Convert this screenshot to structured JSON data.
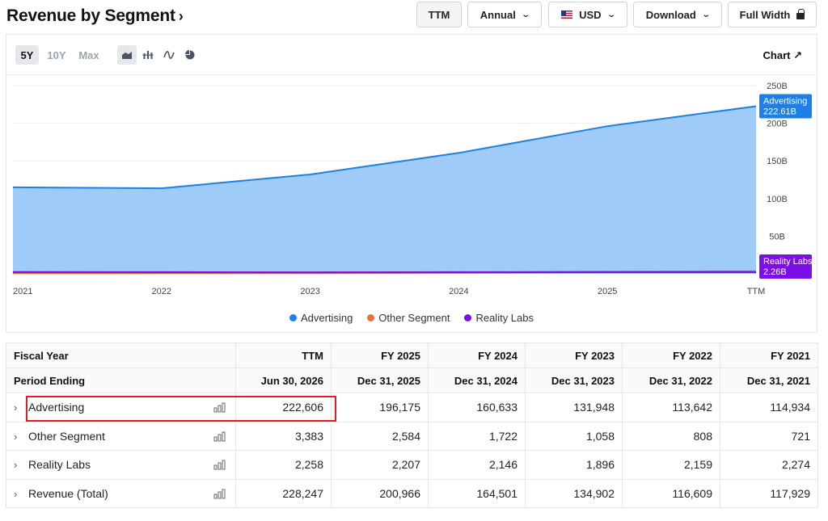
{
  "header": {
    "title": "Revenue by Segment",
    "buttons": {
      "ttm": "TTM",
      "annual": "Annual",
      "currency": "USD",
      "download": "Download",
      "full_width": "Full Width"
    }
  },
  "toolbar": {
    "ranges": [
      "5Y",
      "10Y",
      "Max"
    ],
    "active_range": "5Y",
    "chart_link": "Chart ↗",
    "chart_types": [
      "area-chart-icon",
      "bar-chart-icon",
      "line-chart-icon",
      "pie-chart-icon"
    ]
  },
  "chart_data": {
    "type": "area",
    "categories": [
      "2021",
      "2022",
      "2023",
      "2024",
      "2025",
      "TTM"
    ],
    "y_ticks": [
      "250B",
      "200B",
      "150B",
      "100B",
      "50B"
    ],
    "ylim": [
      0,
      250
    ],
    "grid": true,
    "legend_position": "bottom",
    "series": [
      {
        "name": "Advertising",
        "color": "#1d7fe8",
        "fill": "#9fcbf9",
        "values": [
          114.934,
          113.642,
          131.948,
          160.633,
          196.175,
          222.606
        ]
      },
      {
        "name": "Other Segment",
        "color": "#e8733a",
        "values": [
          0.721,
          0.808,
          1.058,
          1.722,
          2.584,
          3.383
        ]
      },
      {
        "name": "Reality Labs",
        "color": "#7b10e6",
        "values": [
          2.274,
          2.159,
          1.896,
          2.146,
          2.207,
          2.258
        ]
      }
    ],
    "end_labels": [
      {
        "series": "Advertising",
        "text": "Advertising",
        "value": "222.61B",
        "color": "#1d7fe8"
      },
      {
        "series": "Reality Labs",
        "text": "Reality Labs",
        "value": "2.26B",
        "color": "#7b10e6"
      }
    ]
  },
  "table": {
    "header_rows": [
      [
        "Fiscal Year",
        "TTM",
        "FY 2025",
        "FY 2024",
        "FY 2023",
        "FY 2022",
        "FY 2021"
      ],
      [
        "Period Ending",
        "Jun 30, 2026",
        "Dec 31, 2025",
        "Dec 31, 2024",
        "Dec 31, 2023",
        "Dec 31, 2022",
        "Dec 31, 2021"
      ]
    ],
    "rows": [
      {
        "label": "Advertising",
        "values": [
          "222,606",
          "196,175",
          "160,633",
          "131,948",
          "113,642",
          "114,934"
        ]
      },
      {
        "label": "Other Segment",
        "values": [
          "3,383",
          "2,584",
          "1,722",
          "1,058",
          "808",
          "721"
        ]
      },
      {
        "label": "Reality Labs",
        "values": [
          "2,258",
          "2,207",
          "2,146",
          "1,896",
          "2,159",
          "2,274"
        ]
      },
      {
        "label": "Revenue (Total)",
        "values": [
          "228,247",
          "200,966",
          "164,501",
          "134,902",
          "116,609",
          "117,929"
        ]
      }
    ]
  }
}
